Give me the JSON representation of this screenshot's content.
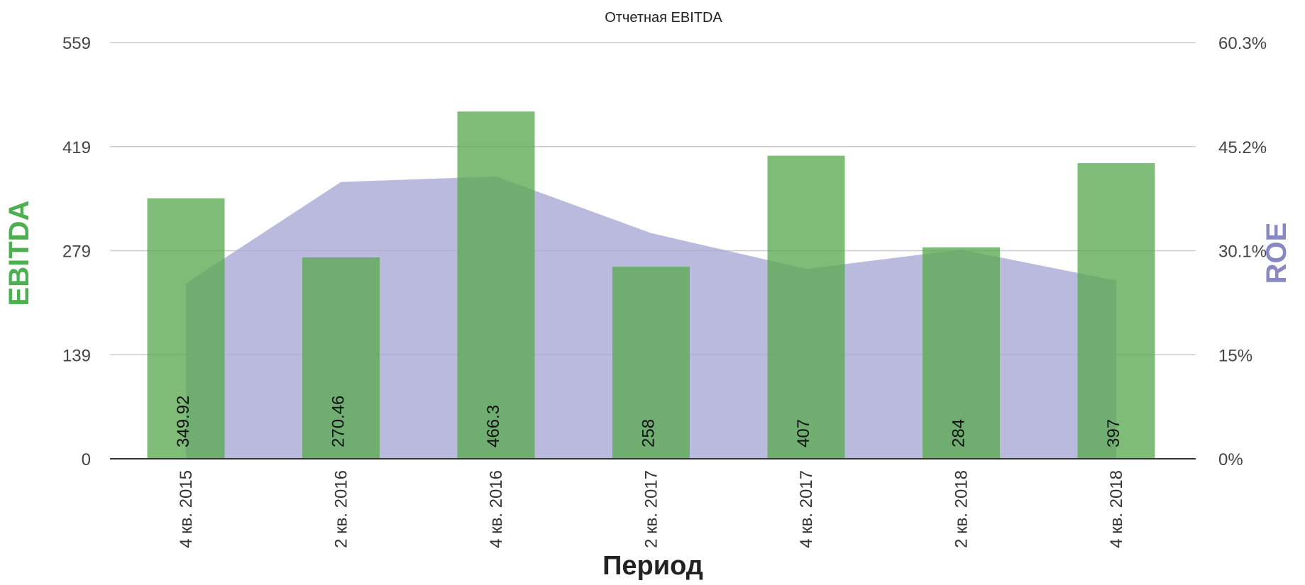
{
  "chart_data": {
    "type": "bar",
    "title": "Отчетная EBITDA",
    "xlabel": "Период",
    "ylabel": "EBITDA",
    "ylabel_right": "ROE",
    "categories": [
      "4 кв. 2015",
      "2 кв. 2016",
      "4 кв. 2016",
      "2 кв. 2017",
      "4 кв. 2017",
      "2 кв. 2018",
      "4 кв. 2018"
    ],
    "series": [
      {
        "name": "EBITDA",
        "type": "bar",
        "axis": "left",
        "values": [
          349.92,
          270.46,
          466.3,
          258,
          407,
          284,
          397
        ],
        "labels": [
          "349.92",
          "270.46",
          "466.3",
          "258",
          "407",
          "284",
          "397"
        ]
      },
      {
        "name": "ROE",
        "type": "area",
        "axis": "right",
        "values": [
          25.4,
          40.1,
          40.9,
          32.7,
          27.5,
          30.3,
          25.8
        ]
      }
    ],
    "ylim": [
      0,
      559
    ],
    "ylim_right": [
      0,
      60.3
    ],
    "yticks": [
      "0",
      "139",
      "279",
      "419",
      "559"
    ],
    "yticks_right": [
      "0%",
      "15%",
      "30.1%",
      "45.2%",
      "60.3%"
    ],
    "grid": true,
    "legend": "none",
    "colors": {
      "bar": "#5aa952",
      "area": "#a6a6d6",
      "left_axis_label": "#4caf50",
      "right_axis_label": "#8888c4",
      "grid": "#cccccc"
    }
  }
}
